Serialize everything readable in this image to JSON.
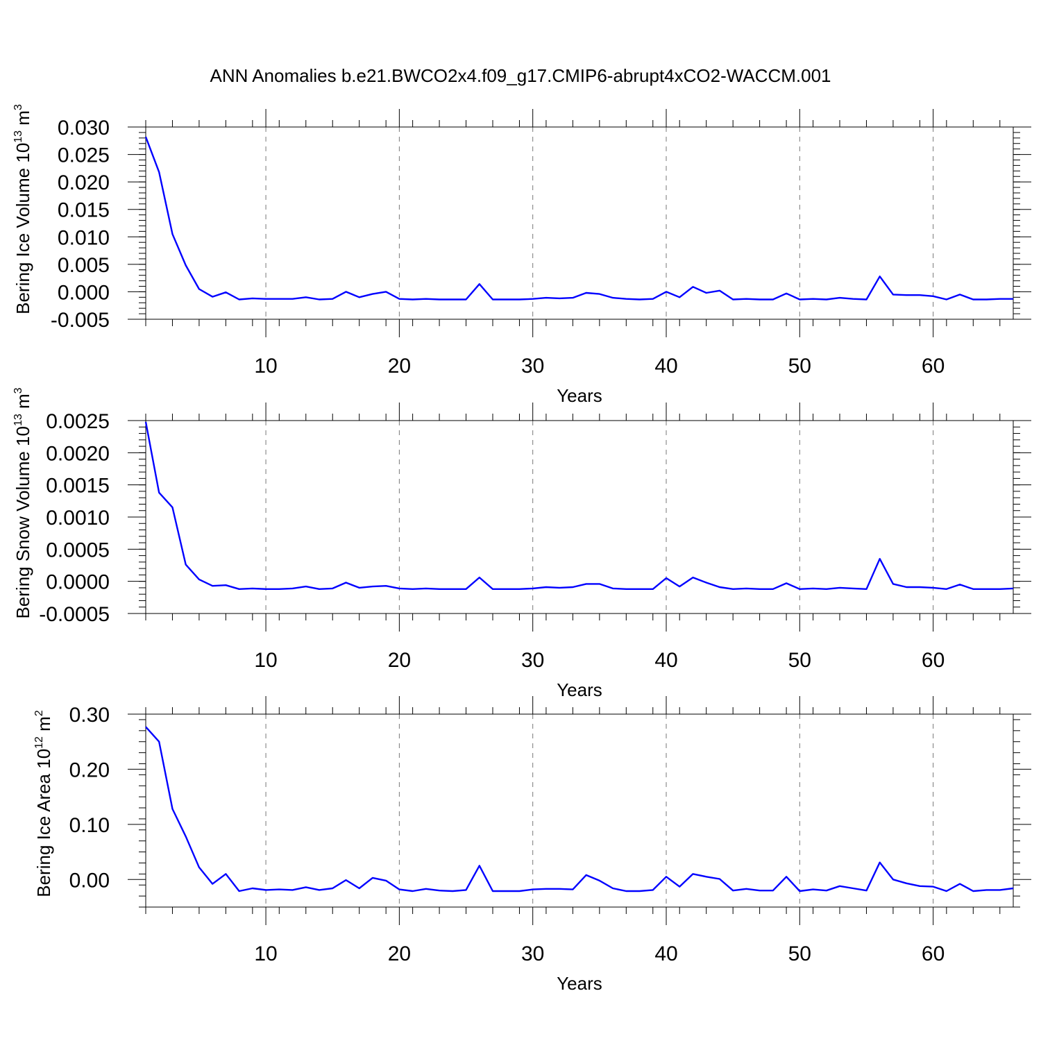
{
  "title": "ANN Anomalies b.e21.BWCO2x4.f09_g17.CMIP6-abrupt4xCO2-WACCM.001",
  "colors": {
    "series": "#0000ff",
    "grid": "#777777",
    "frame": "#000000"
  },
  "chart_data": [
    {
      "type": "line",
      "ylabel": {
        "text": "Bering Ice Volume 10",
        "exp": "13",
        "unit": " m",
        "unit_exp": "3"
      },
      "xlabel": "Years",
      "xlim": [
        1,
        66
      ],
      "ylim": [
        -0.005,
        0.03
      ],
      "xticks": [
        10,
        20,
        30,
        40,
        50,
        60
      ],
      "xtick_labels": [
        "10",
        "20",
        "30",
        "40",
        "50",
        "60"
      ],
      "yticks": [
        -0.005,
        0.0,
        0.005,
        0.01,
        0.015,
        0.02,
        0.025,
        0.03
      ],
      "ytick_labels": [
        "-0.005",
        "0.000",
        "0.005",
        "0.010",
        "0.015",
        "0.020",
        "0.025",
        "0.030"
      ],
      "grid": "vertical dashed",
      "series": [
        {
          "values": [
            0.0282,
            0.0218,
            0.0105,
            0.0048,
            0.0005,
            -0.0009,
            -0.0001,
            -0.0014,
            -0.0012,
            -0.0013,
            -0.0013,
            -0.0013,
            -0.001,
            -0.0014,
            -0.0013,
            0.0,
            -0.001,
            -0.0004,
            0.0,
            -0.0013,
            -0.0014,
            -0.0013,
            -0.0014,
            -0.0014,
            -0.0014,
            0.0014,
            -0.0014,
            -0.0014,
            -0.0014,
            -0.0013,
            -0.0011,
            -0.0012,
            -0.0011,
            -0.0002,
            -0.0004,
            -0.0011,
            -0.0013,
            -0.0014,
            -0.0013,
            0.0,
            -0.001,
            0.0009,
            -0.0002,
            0.0002,
            -0.0014,
            -0.0013,
            -0.0014,
            -0.0014,
            -0.0003,
            -0.0014,
            -0.0013,
            -0.0014,
            -0.0011,
            -0.0013,
            -0.0014,
            0.0028,
            -0.0005,
            -0.0006,
            -0.0006,
            -0.0008,
            -0.0014,
            -0.0005,
            -0.0014,
            -0.0014,
            -0.0013,
            -0.0013
          ]
        }
      ]
    },
    {
      "type": "line",
      "ylabel": {
        "text": "Bering Snow Volume 10",
        "exp": "13",
        "unit": " m",
        "unit_exp": "3"
      },
      "xlabel": "Years",
      "xlim": [
        1,
        66
      ],
      "ylim": [
        -0.0005,
        0.0025
      ],
      "xticks": [
        10,
        20,
        30,
        40,
        50,
        60
      ],
      "xtick_labels": [
        "10",
        "20",
        "30",
        "40",
        "50",
        "60"
      ],
      "yticks": [
        -0.0005,
        0.0,
        0.0005,
        0.001,
        0.0015,
        0.002,
        0.0025
      ],
      "ytick_labels": [
        "-0.0005",
        "0.0000",
        "0.0005",
        "0.0010",
        "0.0015",
        "0.0020",
        "0.0025"
      ],
      "grid": "vertical dashed",
      "series": [
        {
          "values": [
            0.00248,
            0.00138,
            0.00115,
            0.00026,
            3e-05,
            -7e-05,
            -6e-05,
            -0.00012,
            -0.00011,
            -0.00012,
            -0.00012,
            -0.00011,
            -8e-05,
            -0.00012,
            -0.00011,
            -2e-05,
            -0.0001,
            -8e-05,
            -7e-05,
            -0.00011,
            -0.00012,
            -0.00011,
            -0.00012,
            -0.00012,
            -0.00012,
            6e-05,
            -0.00012,
            -0.00012,
            -0.00012,
            -0.00011,
            -9e-05,
            -0.0001,
            -9e-05,
            -4e-05,
            -4e-05,
            -0.00011,
            -0.00012,
            -0.00012,
            -0.00012,
            5e-05,
            -8e-05,
            6e-05,
            -2e-05,
            -9e-05,
            -0.00012,
            -0.00011,
            -0.00012,
            -0.00012,
            -3e-05,
            -0.00012,
            -0.00011,
            -0.00012,
            -0.0001,
            -0.00011,
            -0.00012,
            0.00035,
            -4e-05,
            -9e-05,
            -9e-05,
            -0.0001,
            -0.00012,
            -5e-05,
            -0.00012,
            -0.00012,
            -0.00012,
            -0.00011
          ]
        }
      ]
    },
    {
      "type": "line",
      "ylabel": {
        "text": "Bering Ice Area 10",
        "exp": "12",
        "unit": " m",
        "unit_exp": "2"
      },
      "xlabel": "Years",
      "xlim": [
        1,
        66
      ],
      "ylim": [
        -0.05,
        0.3
      ],
      "xticks": [
        10,
        20,
        30,
        40,
        50,
        60
      ],
      "xtick_labels": [
        "10",
        "20",
        "30",
        "40",
        "50",
        "60"
      ],
      "yticks": [
        0.0,
        0.1,
        0.2,
        0.3
      ],
      "ytick_labels": [
        "0.00",
        "0.10",
        "0.20",
        "0.30"
      ],
      "grid": "vertical dashed",
      "series": [
        {
          "values": [
            0.277,
            0.25,
            0.128,
            0.078,
            0.022,
            -0.008,
            0.01,
            -0.021,
            -0.016,
            -0.019,
            -0.018,
            -0.019,
            -0.014,
            -0.019,
            -0.016,
            -0.001,
            -0.016,
            0.003,
            -0.002,
            -0.018,
            -0.021,
            -0.017,
            -0.02,
            -0.021,
            -0.019,
            0.025,
            -0.021,
            -0.021,
            -0.021,
            -0.018,
            -0.017,
            -0.017,
            -0.018,
            0.008,
            -0.002,
            -0.016,
            -0.021,
            -0.021,
            -0.019,
            0.005,
            -0.013,
            0.01,
            0.005,
            0.001,
            -0.02,
            -0.017,
            -0.02,
            -0.02,
            0.005,
            -0.021,
            -0.018,
            -0.02,
            -0.012,
            -0.016,
            -0.02,
            0.031,
            0.0,
            -0.007,
            -0.012,
            -0.013,
            -0.021,
            -0.008,
            -0.021,
            -0.019,
            -0.019,
            -0.016
          ]
        }
      ]
    }
  ]
}
